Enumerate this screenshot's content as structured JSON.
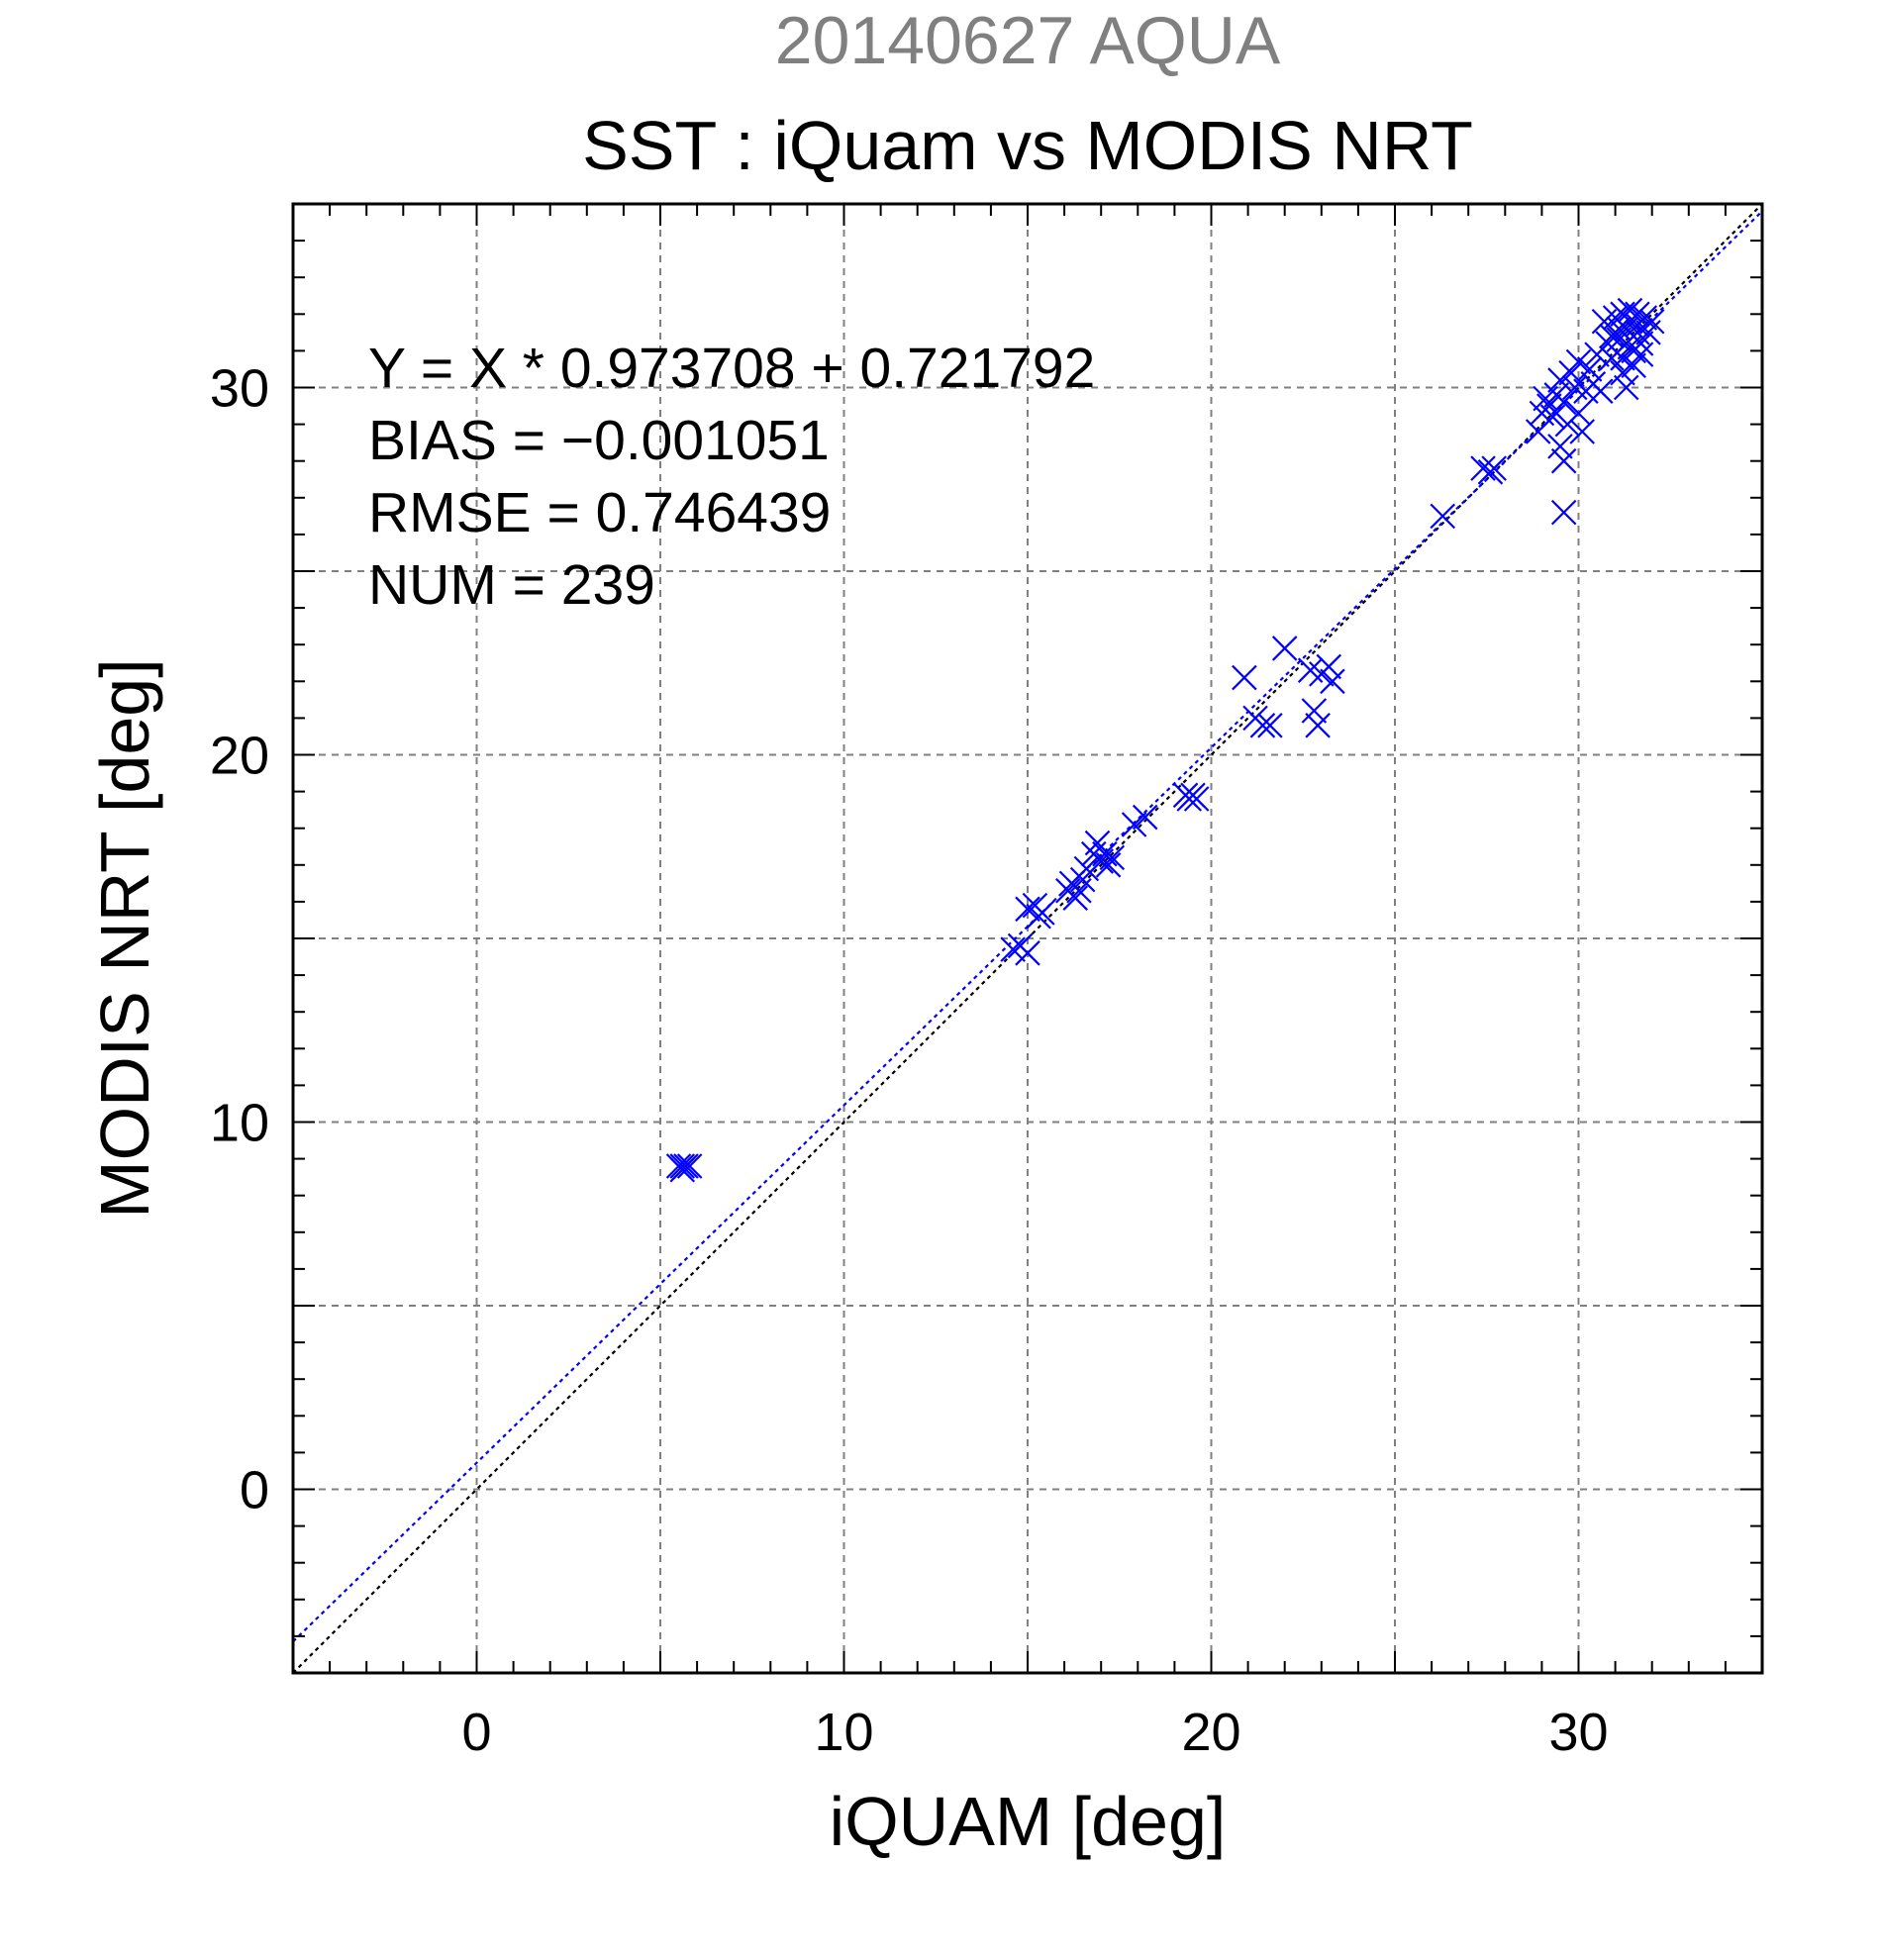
{
  "suptitle": "20140627 AQUA",
  "chart_data": {
    "type": "scatter",
    "title": "SST : iQuam vs MODIS NRT",
    "xlabel": "iQUAM [deg]",
    "ylabel": "MODIS NRT [deg]",
    "xlim": [
      -5,
      35
    ],
    "ylim": [
      -5,
      35
    ],
    "xticks": [
      0,
      10,
      20,
      30
    ],
    "yticks": [
      0,
      10,
      20,
      30
    ],
    "xtick_labels": [
      "0",
      "10",
      "20",
      "30"
    ],
    "ytick_labels": [
      "0",
      "10",
      "20",
      "30"
    ],
    "minor_tick_step": 1,
    "grid_step": 5,
    "grid": true,
    "marker": "x",
    "marker_color": "#0000ff",
    "fit_line": {
      "slope": 0.973708,
      "intercept": 0.721792,
      "color": "#0000ff",
      "style": "dotted"
    },
    "identity_line": {
      "slope": 1,
      "intercept": 0,
      "color": "#000000",
      "style": "dotted"
    },
    "stats": [
      "Y = X * 0.973708 + 0.721792",
      "BIAS = −0.001051",
      "RMSE = 0.746439",
      "NUM = 239"
    ],
    "points": [
      [
        5.5,
        8.8
      ],
      [
        5.6,
        8.8
      ],
      [
        5.7,
        8.8
      ],
      [
        5.8,
        8.8
      ],
      [
        5.6,
        8.7
      ],
      [
        14.6,
        14.7
      ],
      [
        14.8,
        14.8
      ],
      [
        15.0,
        14.6
      ],
      [
        15.0,
        15.8
      ],
      [
        15.2,
        15.9
      ],
      [
        15.3,
        15.6
      ],
      [
        15.4,
        15.7
      ],
      [
        16.1,
        16.3
      ],
      [
        16.2,
        16.5
      ],
      [
        16.3,
        16.1
      ],
      [
        16.4,
        16.3
      ],
      [
        16.5,
        16.6
      ],
      [
        16.6,
        16.9
      ],
      [
        16.8,
        17.3
      ],
      [
        16.9,
        17.6
      ],
      [
        17.0,
        17.1
      ],
      [
        17.1,
        17.3
      ],
      [
        17.2,
        17.0
      ],
      [
        17.3,
        17.2
      ],
      [
        17.9,
        18.1
      ],
      [
        18.2,
        18.3
      ],
      [
        19.3,
        18.9
      ],
      [
        19.4,
        18.8
      ],
      [
        19.5,
        18.9
      ],
      [
        19.6,
        18.8
      ],
      [
        20.9,
        22.1
      ],
      [
        21.2,
        21.0
      ],
      [
        21.4,
        20.8
      ],
      [
        21.6,
        20.8
      ],
      [
        22.0,
        22.9
      ],
      [
        22.7,
        22.3
      ],
      [
        22.8,
        21.2
      ],
      [
        22.9,
        20.8
      ],
      [
        23.0,
        22.2
      ],
      [
        23.2,
        22.4
      ],
      [
        23.3,
        22.0
      ],
      [
        26.3,
        26.5
      ],
      [
        27.4,
        27.8
      ],
      [
        27.6,
        27.7
      ],
      [
        27.7,
        27.8
      ],
      [
        28.9,
        28.8
      ],
      [
        29.0,
        29.3
      ],
      [
        29.1,
        29.7
      ],
      [
        29.2,
        29.5
      ],
      [
        29.3,
        29.2
      ],
      [
        29.4,
        29.8
      ],
      [
        29.5,
        28.4
      ],
      [
        29.5,
        30.2
      ],
      [
        29.6,
        28.0
      ],
      [
        29.6,
        29.6
      ],
      [
        29.6,
        26.6
      ],
      [
        29.7,
        29.0
      ],
      [
        29.8,
        30.4
      ],
      [
        29.9,
        30.0
      ],
      [
        30.0,
        29.3
      ],
      [
        30.0,
        30.7
      ],
      [
        30.1,
        28.8
      ],
      [
        30.2,
        29.9
      ],
      [
        30.3,
        30.5
      ],
      [
        30.4,
        30.1
      ],
      [
        30.5,
        30.9
      ],
      [
        30.6,
        29.9
      ],
      [
        30.7,
        31.8
      ],
      [
        30.8,
        31.2
      ],
      [
        30.9,
        30.8
      ],
      [
        31.0,
        31.5
      ],
      [
        31.0,
        31.9
      ],
      [
        31.1,
        31.3
      ],
      [
        31.2,
        32.0
      ],
      [
        31.2,
        30.4
      ],
      [
        31.3,
        31.6
      ],
      [
        31.3,
        30.0
      ],
      [
        31.4,
        31.1
      ],
      [
        31.4,
        31.8
      ],
      [
        31.5,
        31.4
      ],
      [
        31.5,
        30.6
      ],
      [
        31.6,
        31.7
      ],
      [
        31.6,
        32.0
      ],
      [
        31.7,
        31.2
      ],
      [
        31.8,
        31.9
      ],
      [
        31.9,
        31.5
      ],
      [
        32.0,
        31.8
      ],
      [
        31.1,
        31.6
      ],
      [
        30.9,
        31.4
      ],
      [
        31.2,
        30.8
      ],
      [
        31.3,
        31.2
      ],
      [
        31.5,
        31.0
      ],
      [
        31.4,
        32.1
      ],
      [
        31.6,
        31.5
      ],
      [
        31.7,
        30.9
      ]
    ]
  }
}
